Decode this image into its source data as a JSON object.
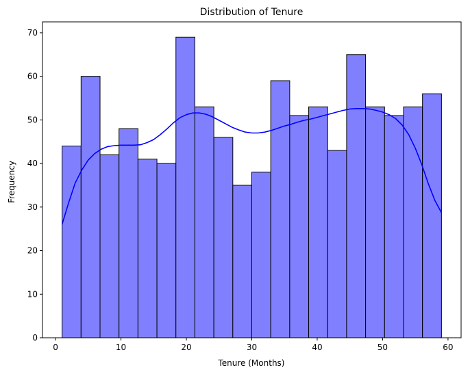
{
  "chart_data": {
    "type": "bar",
    "title": "Distribution of Tenure",
    "xlabel": "Tenure (Months)",
    "ylabel": "Frequency",
    "xlim": [
      -2,
      62
    ],
    "ylim": [
      0,
      72.5
    ],
    "xticks": [
      0,
      10,
      20,
      30,
      40,
      50,
      60
    ],
    "yticks": [
      0,
      10,
      20,
      30,
      40,
      50,
      60,
      70
    ],
    "bin_edges": [
      1,
      3.9,
      6.8,
      9.7,
      12.6,
      15.5,
      18.4,
      21.3,
      24.2,
      27.1,
      30,
      32.9,
      35.8,
      38.7,
      41.6,
      44.5,
      47.4,
      50.3,
      53.2,
      56.1,
      59
    ],
    "values": [
      44,
      60,
      42,
      48,
      41,
      40,
      69,
      53,
      46,
      35,
      38,
      59,
      51,
      53,
      43,
      65,
      53,
      51,
      53,
      56
    ],
    "kde": {
      "x": [
        1,
        2,
        3,
        4,
        5,
        6,
        7,
        8,
        9,
        10,
        11,
        12,
        13,
        14,
        15,
        16,
        17,
        18,
        19,
        20,
        21,
        22,
        23,
        24,
        25,
        26,
        27,
        28,
        29,
        30,
        31,
        32,
        33,
        34,
        35,
        36,
        37,
        38,
        39,
        40,
        41,
        42,
        43,
        44,
        45,
        46,
        47,
        48,
        49,
        50,
        51,
        52,
        53,
        54,
        55,
        56,
        57,
        58,
        59
      ],
      "y": [
        26,
        31,
        35.5,
        38.5,
        40.8,
        42.3,
        43.3,
        43.9,
        44.1,
        44.2,
        44.2,
        44.2,
        44.3,
        44.8,
        45.5,
        46.6,
        47.9,
        49.3,
        50.5,
        51.2,
        51.6,
        51.6,
        51.3,
        50.7,
        49.9,
        49.1,
        48.3,
        47.7,
        47.2,
        47,
        47,
        47.2,
        47.6,
        48.1,
        48.6,
        49,
        49.5,
        49.9,
        50.2,
        50.6,
        51,
        51.4,
        51.8,
        52.2,
        52.5,
        52.6,
        52.6,
        52.5,
        52.2,
        51.8,
        51.2,
        50.3,
        48.8,
        46.6,
        43.5,
        39.7,
        35.3,
        31.5,
        28.7
      ]
    },
    "colors": {
      "bar_fill": "#8080ff",
      "bar_edge": "#000000",
      "kde_line": "#0000ff"
    },
    "grid": false,
    "legend": "none"
  }
}
